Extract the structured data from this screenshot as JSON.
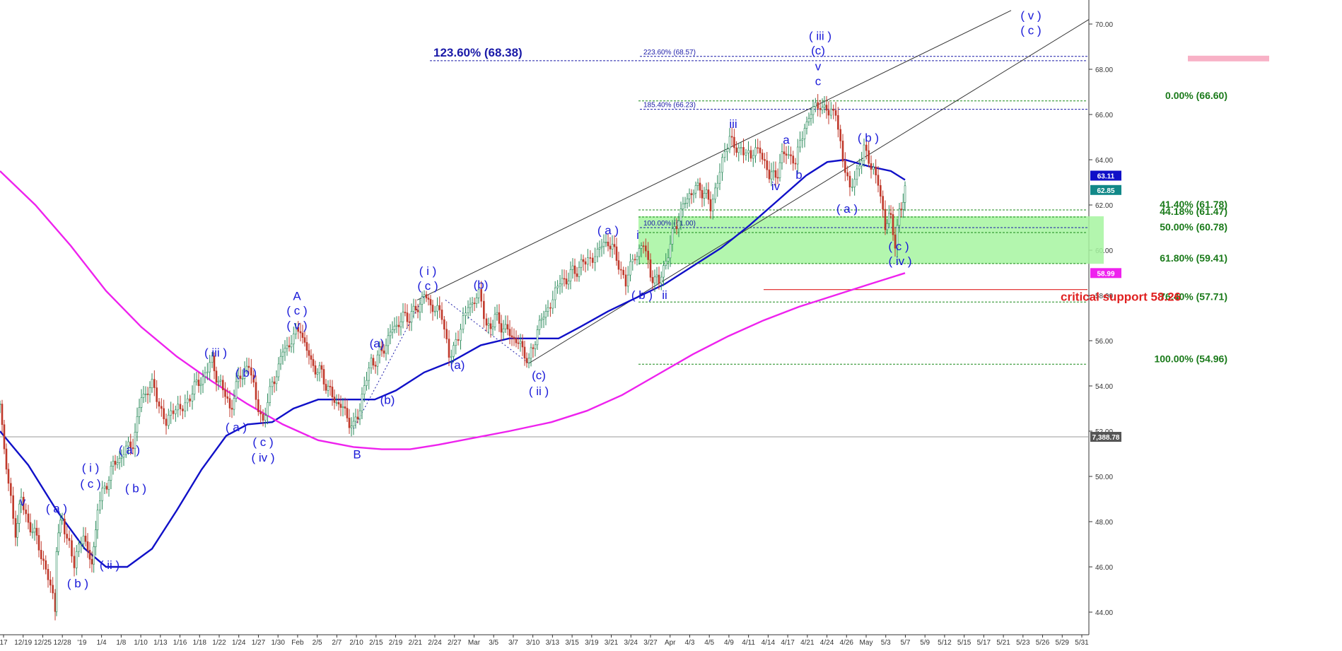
{
  "chart_data": {
    "type": "line",
    "subtype": "candlestick",
    "title": "",
    "xlabel": "",
    "ylabel": "",
    "ylim": [
      43.0,
      70.5
    ],
    "grid": false,
    "y_ticks": [
      "70.00",
      "68.00",
      "66.00",
      "64.00",
      "62.00",
      "60.00",
      "58.00",
      "56.00",
      "54.00",
      "52.00",
      "50.00",
      "48.00",
      "46.00",
      "44.00"
    ],
    "x_ticks": [
      "17",
      "12/19",
      "12/25",
      "12/28",
      "'19",
      "1/4",
      "1/8",
      "1/10",
      "1/13",
      "1/16",
      "1/18",
      "1/22",
      "1/24",
      "1/27",
      "1/30",
      "Feb",
      "2/5",
      "2/7",
      "2/10",
      "2/15",
      "2/19",
      "2/21",
      "2/24",
      "2/27",
      "Mar",
      "3/5",
      "3/7",
      "3/10",
      "3/13",
      "3/15",
      "3/19",
      "3/21",
      "3/24",
      "3/27",
      "Apr",
      "4/3",
      "4/5",
      "4/9",
      "4/11",
      "4/14",
      "4/17",
      "4/21",
      "4/24",
      "4/26",
      "May",
      "5/3",
      "5/7",
      "5/9",
      "5/12",
      "5/15",
      "5/17",
      "5/21",
      "5/23",
      "5/26",
      "5/29",
      "5/31"
    ],
    "price_path": [
      {
        "x": 0,
        "y": 53.2
      },
      {
        "x": 12,
        "y": 49.5
      },
      {
        "x": 22,
        "y": 47.5
      },
      {
        "x": 30,
        "y": 49.0
      },
      {
        "x": 40,
        "y": 48.0
      },
      {
        "x": 55,
        "y": 47.0
      },
      {
        "x": 68,
        "y": 45.5
      },
      {
        "x": 78,
        "y": 44.0
      },
      {
        "x": 80,
        "y": 47.0
      },
      {
        "x": 88,
        "y": 48.2
      },
      {
        "x": 98,
        "y": 47.0
      },
      {
        "x": 105,
        "y": 46.0
      },
      {
        "x": 118,
        "y": 47.5
      },
      {
        "x": 130,
        "y": 46.0
      },
      {
        "x": 138,
        "y": 48.5
      },
      {
        "x": 148,
        "y": 49.5
      },
      {
        "x": 160,
        "y": 50.5
      },
      {
        "x": 175,
        "y": 51.0
      },
      {
        "x": 188,
        "y": 51.5
      },
      {
        "x": 200,
        "y": 53.5
      },
      {
        "x": 215,
        "y": 54.0
      },
      {
        "x": 235,
        "y": 52.5
      },
      {
        "x": 255,
        "y": 53.0
      },
      {
        "x": 272,
        "y": 53.8
      },
      {
        "x": 290,
        "y": 54.5
      },
      {
        "x": 300,
        "y": 55.0
      },
      {
        "x": 312,
        "y": 54.0
      },
      {
        "x": 325,
        "y": 53.0
      },
      {
        "x": 340,
        "y": 54.5
      },
      {
        "x": 352,
        "y": 54.8
      },
      {
        "x": 362,
        "y": 53.5
      },
      {
        "x": 372,
        "y": 52.5
      },
      {
        "x": 385,
        "y": 54.0
      },
      {
        "x": 400,
        "y": 55.5
      },
      {
        "x": 412,
        "y": 56.0
      },
      {
        "x": 425,
        "y": 56.5
      },
      {
        "x": 440,
        "y": 55.0
      },
      {
        "x": 455,
        "y": 54.5
      },
      {
        "x": 470,
        "y": 53.5
      },
      {
        "x": 485,
        "y": 53.0
      },
      {
        "x": 500,
        "y": 52.1
      },
      {
        "x": 512,
        "y": 53.5
      },
      {
        "x": 525,
        "y": 55.0
      },
      {
        "x": 540,
        "y": 55.5
      },
      {
        "x": 555,
        "y": 56.5
      },
      {
        "x": 570,
        "y": 57.0
      },
      {
        "x": 585,
        "y": 57.2
      },
      {
        "x": 600,
        "y": 58.0
      },
      {
        "x": 612,
        "y": 57.5
      },
      {
        "x": 625,
        "y": 57.0
      },
      {
        "x": 635,
        "y": 55.5
      },
      {
        "x": 648,
        "y": 56.0
      },
      {
        "x": 662,
        "y": 57.5
      },
      {
        "x": 677,
        "y": 58.0
      },
      {
        "x": 688,
        "y": 56.5
      },
      {
        "x": 700,
        "y": 57.0
      },
      {
        "x": 715,
        "y": 56.5
      },
      {
        "x": 730,
        "y": 56.0
      },
      {
        "x": 742,
        "y": 55.5
      },
      {
        "x": 748,
        "y": 55.0
      },
      {
        "x": 760,
        "y": 56.5
      },
      {
        "x": 775,
        "y": 57.5
      },
      {
        "x": 792,
        "y": 58.5
      },
      {
        "x": 810,
        "y": 59.0
      },
      {
        "x": 828,
        "y": 59.5
      },
      {
        "x": 845,
        "y": 60.0
      },
      {
        "x": 860,
        "y": 60.4
      },
      {
        "x": 875,
        "y": 59.5
      },
      {
        "x": 885,
        "y": 58.5
      },
      {
        "x": 898,
        "y": 59.8
      },
      {
        "x": 910,
        "y": 60.2
      },
      {
        "x": 920,
        "y": 59.0
      },
      {
        "x": 932,
        "y": 58.5
      },
      {
        "x": 945,
        "y": 60.0
      },
      {
        "x": 960,
        "y": 61.5
      },
      {
        "x": 975,
        "y": 62.5
      },
      {
        "x": 990,
        "y": 62.8
      },
      {
        "x": 1005,
        "y": 62.0
      },
      {
        "x": 1018,
        "y": 63.5
      },
      {
        "x": 1032,
        "y": 64.8
      },
      {
        "x": 1048,
        "y": 64.5
      },
      {
        "x": 1062,
        "y": 64.0
      },
      {
        "x": 1075,
        "y": 64.6
      },
      {
        "x": 1088,
        "y": 63.2
      },
      {
        "x": 1100,
        "y": 63.5
      },
      {
        "x": 1112,
        "y": 64.5
      },
      {
        "x": 1125,
        "y": 63.8
      },
      {
        "x": 1138,
        "y": 65.5
      },
      {
        "x": 1150,
        "y": 66.2
      },
      {
        "x": 1160,
        "y": 66.5
      },
      {
        "x": 1172,
        "y": 66.0
      },
      {
        "x": 1182,
        "y": 66.3
      },
      {
        "x": 1192,
        "y": 64.0
      },
      {
        "x": 1202,
        "y": 62.5
      },
      {
        "x": 1212,
        "y": 63.5
      },
      {
        "x": 1222,
        "y": 64.7
      },
      {
        "x": 1232,
        "y": 63.5
      },
      {
        "x": 1242,
        "y": 63.0
      },
      {
        "x": 1252,
        "y": 61.2
      },
      {
        "x": 1260,
        "y": 61.5
      },
      {
        "x": 1266,
        "y": 60.3
      },
      {
        "x": 1272,
        "y": 61.5
      },
      {
        "x": 1280,
        "y": 62.85
      }
    ],
    "series": [
      {
        "name": "",
        "color": "#1010c8",
        "values": [
          {
            "x": 0,
            "y": 52.0
          },
          {
            "x": 40,
            "y": 50.5
          },
          {
            "x": 80,
            "y": 48.5
          },
          {
            "x": 120,
            "y": 46.8
          },
          {
            "x": 150,
            "y": 46.0
          },
          {
            "x": 180,
            "y": 46.0
          },
          {
            "x": 215,
            "y": 46.8
          },
          {
            "x": 250,
            "y": 48.5
          },
          {
            "x": 285,
            "y": 50.3
          },
          {
            "x": 320,
            "y": 51.8
          },
          {
            "x": 350,
            "y": 52.3
          },
          {
            "x": 385,
            "y": 52.4
          },
          {
            "x": 415,
            "y": 53.0
          },
          {
            "x": 450,
            "y": 53.4
          },
          {
            "x": 490,
            "y": 53.4
          },
          {
            "x": 530,
            "y": 53.4
          },
          {
            "x": 560,
            "y": 53.8
          },
          {
            "x": 600,
            "y": 54.6
          },
          {
            "x": 640,
            "y": 55.1
          },
          {
            "x": 680,
            "y": 55.8
          },
          {
            "x": 720,
            "y": 56.1
          },
          {
            "x": 760,
            "y": 56.1
          },
          {
            "x": 790,
            "y": 56.1
          },
          {
            "x": 820,
            "y": 56.6
          },
          {
            "x": 860,
            "y": 57.3
          },
          {
            "x": 900,
            "y": 57.9
          },
          {
            "x": 940,
            "y": 58.5
          },
          {
            "x": 980,
            "y": 59.3
          },
          {
            "x": 1020,
            "y": 60.1
          },
          {
            "x": 1060,
            "y": 61.1
          },
          {
            "x": 1100,
            "y": 62.2
          },
          {
            "x": 1140,
            "y": 63.3
          },
          {
            "x": 1170,
            "y": 63.9
          },
          {
            "x": 1195,
            "y": 64.0
          },
          {
            "x": 1230,
            "y": 63.7
          },
          {
            "x": 1260,
            "y": 63.5
          },
          {
            "x": 1280,
            "y": 63.11
          }
        ]
      },
      {
        "name": "",
        "color": "#ee22ee",
        "values": [
          {
            "x": 0,
            "y": 63.5
          },
          {
            "x": 50,
            "y": 62.0
          },
          {
            "x": 100,
            "y": 60.2
          },
          {
            "x": 150,
            "y": 58.2
          },
          {
            "x": 200,
            "y": 56.6
          },
          {
            "x": 250,
            "y": 55.3
          },
          {
            "x": 300,
            "y": 54.2
          },
          {
            "x": 350,
            "y": 53.2
          },
          {
            "x": 400,
            "y": 52.3
          },
          {
            "x": 450,
            "y": 51.6
          },
          {
            "x": 500,
            "y": 51.3
          },
          {
            "x": 540,
            "y": 51.2
          },
          {
            "x": 580,
            "y": 51.2
          },
          {
            "x": 620,
            "y": 51.4
          },
          {
            "x": 670,
            "y": 51.7
          },
          {
            "x": 720,
            "y": 52.0
          },
          {
            "x": 780,
            "y": 52.4
          },
          {
            "x": 830,
            "y": 52.9
          },
          {
            "x": 880,
            "y": 53.6
          },
          {
            "x": 930,
            "y": 54.5
          },
          {
            "x": 980,
            "y": 55.4
          },
          {
            "x": 1030,
            "y": 56.2
          },
          {
            "x": 1080,
            "y": 56.9
          },
          {
            "x": 1130,
            "y": 57.5
          },
          {
            "x": 1180,
            "y": 58.0
          },
          {
            "x": 1230,
            "y": 58.5
          },
          {
            "x": 1280,
            "y": 58.99
          }
        ]
      }
    ],
    "price_tags": [
      {
        "text": "63.11",
        "y": 63.11,
        "color": "#1010c8"
      },
      {
        "text": "62.85",
        "y": 62.85,
        "color": "#118888"
      },
      {
        "text": "58.99",
        "y": 58.99,
        "color": "#ee22ee"
      },
      {
        "text": "7,388.78",
        "y": 51.75,
        "color": "#555555"
      }
    ],
    "fib_levels": [
      {
        "text": "0.00% (66.60)",
        "y": 66.6
      },
      {
        "text": "41.40% (61.78)",
        "y": 61.78
      },
      {
        "text": "44.18% (61.47)",
        "y": 61.47
      },
      {
        "text": "50.00% (60.78)",
        "y": 60.78
      },
      {
        "text": "61.80% (59.41)",
        "y": 59.41
      },
      {
        "text": "76.40% (57.71)",
        "y": 57.71
      },
      {
        "text": "100.00% (54.96)",
        "y": 54.96
      }
    ],
    "blue_levels": [
      {
        "text": "123.60% (68.38)",
        "y": 68.38,
        "big": true
      },
      {
        "text": "223.60% (68.57)",
        "y": 68.57,
        "big": false
      },
      {
        "text": "185.40% (66.23)",
        "y": 66.23,
        "big": false
      },
      {
        "text": "100.00% (61.00)",
        "y": 61.0,
        "big": false
      }
    ],
    "support": {
      "text": "critical support 58.26",
      "y": 58.26
    },
    "zone": {
      "y_top": 61.5,
      "y_bottom": 59.4
    },
    "target_zone": {
      "y_top": 68.6,
      "y_bottom": 68.35
    },
    "wave_labels": [
      {
        "text": "v",
        "x": 32,
        "y": 48.7
      },
      {
        "text": "( a )",
        "x": 80,
        "y": 48.4
      },
      {
        "text": "( b )",
        "x": 110,
        "y": 45.1
      },
      {
        "text": "( i )",
        "x": 128,
        "y": 50.2
      },
      {
        "text": "( c )",
        "x": 128,
        "y": 49.5
      },
      {
        "text": "( ii )",
        "x": 155,
        "y": 45.9
      },
      {
        "text": "( a )",
        "x": 183,
        "y": 51.0
      },
      {
        "text": "( b )",
        "x": 192,
        "y": 49.3
      },
      {
        "text": "( iii )",
        "x": 305,
        "y": 55.3
      },
      {
        "text": "( b )",
        "x": 348,
        "y": 54.4
      },
      {
        "text": "( a )",
        "x": 334,
        "y": 52.0
      },
      {
        "text": "( c )",
        "x": 372,
        "y": 51.35
      },
      {
        "text": "( iv )",
        "x": 372,
        "y": 50.65
      },
      {
        "text": "A",
        "x": 420,
        "y": 57.8
      },
      {
        "text": "( c )",
        "x": 420,
        "y": 57.15
      },
      {
        "text": "( v )",
        "x": 420,
        "y": 56.5
      },
      {
        "text": "B",
        "x": 505,
        "y": 50.8
      },
      {
        "text": "(a)",
        "x": 533,
        "y": 55.7
      },
      {
        "text": "(b)",
        "x": 548,
        "y": 53.2
      },
      {
        "text": "( i )",
        "x": 605,
        "y": 58.9
      },
      {
        "text": "( c )",
        "x": 605,
        "y": 58.25
      },
      {
        "text": "(a)",
        "x": 647,
        "y": 54.75
      },
      {
        "text": "(b)",
        "x": 680,
        "y": 58.3
      },
      {
        "text": "(c)",
        "x": 762,
        "y": 54.3
      },
      {
        "text": "( ii )",
        "x": 762,
        "y": 53.6
      },
      {
        "text": "( a )",
        "x": 860,
        "y": 60.7
      },
      {
        "text": "i",
        "x": 902,
        "y": 60.5
      },
      {
        "text": "( b )",
        "x": 908,
        "y": 57.85
      },
      {
        "text": "ii",
        "x": 940,
        "y": 57.85
      },
      {
        "text": "iii",
        "x": 1037,
        "y": 65.4
      },
      {
        "text": "a",
        "x": 1112,
        "y": 64.7
      },
      {
        "text": "iv",
        "x": 1097,
        "y": 62.65
      },
      {
        "text": "b",
        "x": 1130,
        "y": 63.15
      },
      {
        "text": "( iii )",
        "x": 1160,
        "y": 69.3
      },
      {
        "text": "(c)",
        "x": 1157,
        "y": 68.65
      },
      {
        "text": "v",
        "x": 1157,
        "y": 67.95
      },
      {
        "text": "c",
        "x": 1157,
        "y": 67.3
      },
      {
        "text": "( b )",
        "x": 1228,
        "y": 64.8
      },
      {
        "text": "( a )",
        "x": 1198,
        "y": 61.65
      },
      {
        "text": "( c )",
        "x": 1271,
        "y": 60.0
      },
      {
        "text": "( iv )",
        "x": 1273,
        "y": 59.35
      },
      {
        "text": "( v )",
        "x": 1458,
        "y": 70.2
      },
      {
        "text": "( c )",
        "x": 1458,
        "y": 69.55
      }
    ],
    "channel_lines": [
      {
        "from": {
          "x": 590,
          "y": 57.8
        },
        "to": {
          "x": 1430,
          "y": 70.6
        }
      },
      {
        "from": {
          "x": 748,
          "y": 55.0
        },
        "to": {
          "x": 1540,
          "y": 70.2
        }
      }
    ],
    "dotted_lines": [
      {
        "from": {
          "x": 500,
          "y": 52.1
        },
        "to": {
          "x": 600,
          "y": 58.0
        }
      },
      {
        "from": {
          "x": 630,
          "y": 57.8
        },
        "to": {
          "x": 748,
          "y": 55.0
        }
      }
    ]
  }
}
